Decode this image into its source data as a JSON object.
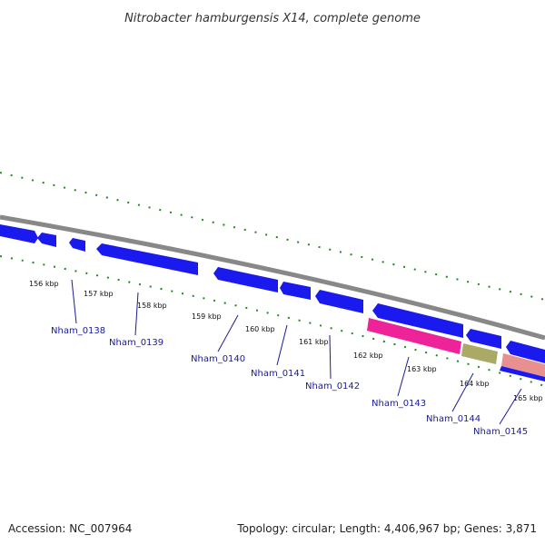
{
  "title": "Nitrobacter hamburgensis X14, complete genome",
  "footer": {
    "accession": "Accession: NC_007964",
    "summary": "Topology: circular; Length: 4,406,967 bp; Genes: 3,871"
  },
  "colors": {
    "backbone": "#888888",
    "forward_gene": "#1a1aee",
    "reverse_gene": "#1a1aee",
    "tick": "#228822",
    "gene_label": "#1a1a9a",
    "pink_feature": "#ee2299",
    "olive_feature": "#aaaa66",
    "salmon_feature": "#e89090"
  },
  "ticks": [
    {
      "label": "156 kbp"
    },
    {
      "label": "157 kbp"
    },
    {
      "label": "158 kbp"
    },
    {
      "label": "159 kbp"
    },
    {
      "label": "160 kbp"
    },
    {
      "label": "161 kbp"
    },
    {
      "label": "162 kbp"
    },
    {
      "label": "163 kbp"
    },
    {
      "label": "164 kbp"
    },
    {
      "label": "165 kbp"
    }
  ],
  "genes": [
    {
      "label": "Nham_0138"
    },
    {
      "label": "Nham_0139"
    },
    {
      "label": "Nham_0140"
    },
    {
      "label": "Nham_0141"
    },
    {
      "label": "Nham_0142"
    },
    {
      "label": "Nham_0143"
    },
    {
      "label": "Nham_0144"
    },
    {
      "label": "Nham_0145"
    }
  ]
}
